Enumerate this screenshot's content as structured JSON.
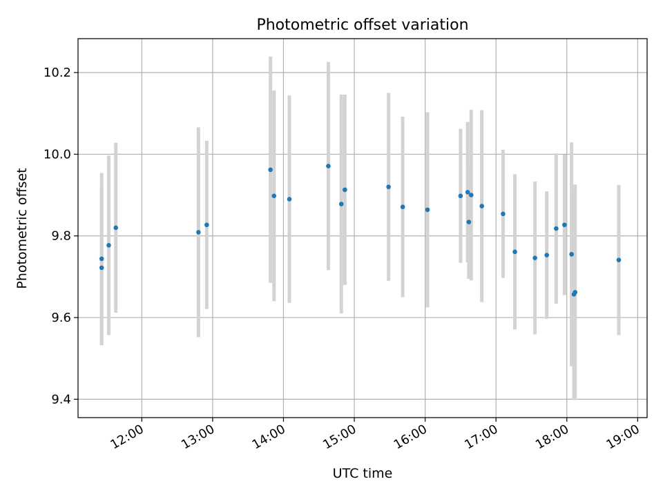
{
  "chart_data": {
    "type": "scatter",
    "title": "Photometric offset variation",
    "xlabel": "UTC time",
    "ylabel": "Photometric offset",
    "x_ticks": [
      "12:00",
      "13:00",
      "14:00",
      "15:00",
      "16:00",
      "17:00",
      "18:00",
      "19:00"
    ],
    "y_ticks": [
      "9.4",
      "9.6",
      "9.8",
      "10.0",
      "10.2"
    ],
    "xlim": [
      "11:06",
      "19:08"
    ],
    "ylim": [
      9.355,
      10.283
    ],
    "grid": true,
    "point_color": "#1f77b4",
    "errorbar_color": "#d3d3d3",
    "points": [
      {
        "x": "11:26",
        "y": 9.722,
        "yerr": 0.19
      },
      {
        "x": "11:26",
        "y": 9.744,
        "yerr": 0.21
      },
      {
        "x": "11:32",
        "y": 9.777,
        "yerr": 0.22
      },
      {
        "x": "11:38",
        "y": 9.82,
        "yerr": 0.208
      },
      {
        "x": "12:48",
        "y": 9.809,
        "yerr": 0.257
      },
      {
        "x": "12:55",
        "y": 9.827,
        "yerr": 0.206
      },
      {
        "x": "13:49",
        "y": 9.962,
        "yerr": 0.277
      },
      {
        "x": "13:52",
        "y": 9.898,
        "yerr": 0.258
      },
      {
        "x": "14:05",
        "y": 9.89,
        "yerr": 0.254
      },
      {
        "x": "14:38",
        "y": 9.971,
        "yerr": 0.255
      },
      {
        "x": "14:49",
        "y": 9.878,
        "yerr": 0.268
      },
      {
        "x": "14:52",
        "y": 9.913,
        "yerr": 0.233
      },
      {
        "x": "15:29",
        "y": 9.92,
        "yerr": 0.23
      },
      {
        "x": "15:41",
        "y": 9.871,
        "yerr": 0.221
      },
      {
        "x": "16:02",
        "y": 9.864,
        "yerr": 0.239
      },
      {
        "x": "16:30",
        "y": 9.898,
        "yerr": 0.164
      },
      {
        "x": "16:36",
        "y": 9.907,
        "yerr": 0.172
      },
      {
        "x": "16:37",
        "y": 9.834,
        "yerr": 0.139
      },
      {
        "x": "16:39",
        "y": 9.9,
        "yerr": 0.209
      },
      {
        "x": "16:48",
        "y": 9.873,
        "yerr": 0.235
      },
      {
        "x": "17:06",
        "y": 9.854,
        "yerr": 0.157
      },
      {
        "x": "17:16",
        "y": 9.761,
        "yerr": 0.19
      },
      {
        "x": "17:33",
        "y": 9.746,
        "yerr": 0.187
      },
      {
        "x": "17:43",
        "y": 9.753,
        "yerr": 0.156
      },
      {
        "x": "17:51",
        "y": 9.818,
        "yerr": 0.184
      },
      {
        "x": "17:58",
        "y": 9.827,
        "yerr": 0.172
      },
      {
        "x": "18:04",
        "y": 9.755,
        "yerr": 0.274
      },
      {
        "x": "18:06",
        "y": 9.657,
        "yerr": 0.259
      },
      {
        "x": "18:07",
        "y": 9.662,
        "yerr": 0.264
      },
      {
        "x": "18:44",
        "y": 9.741,
        "yerr": 0.184
      }
    ]
  }
}
